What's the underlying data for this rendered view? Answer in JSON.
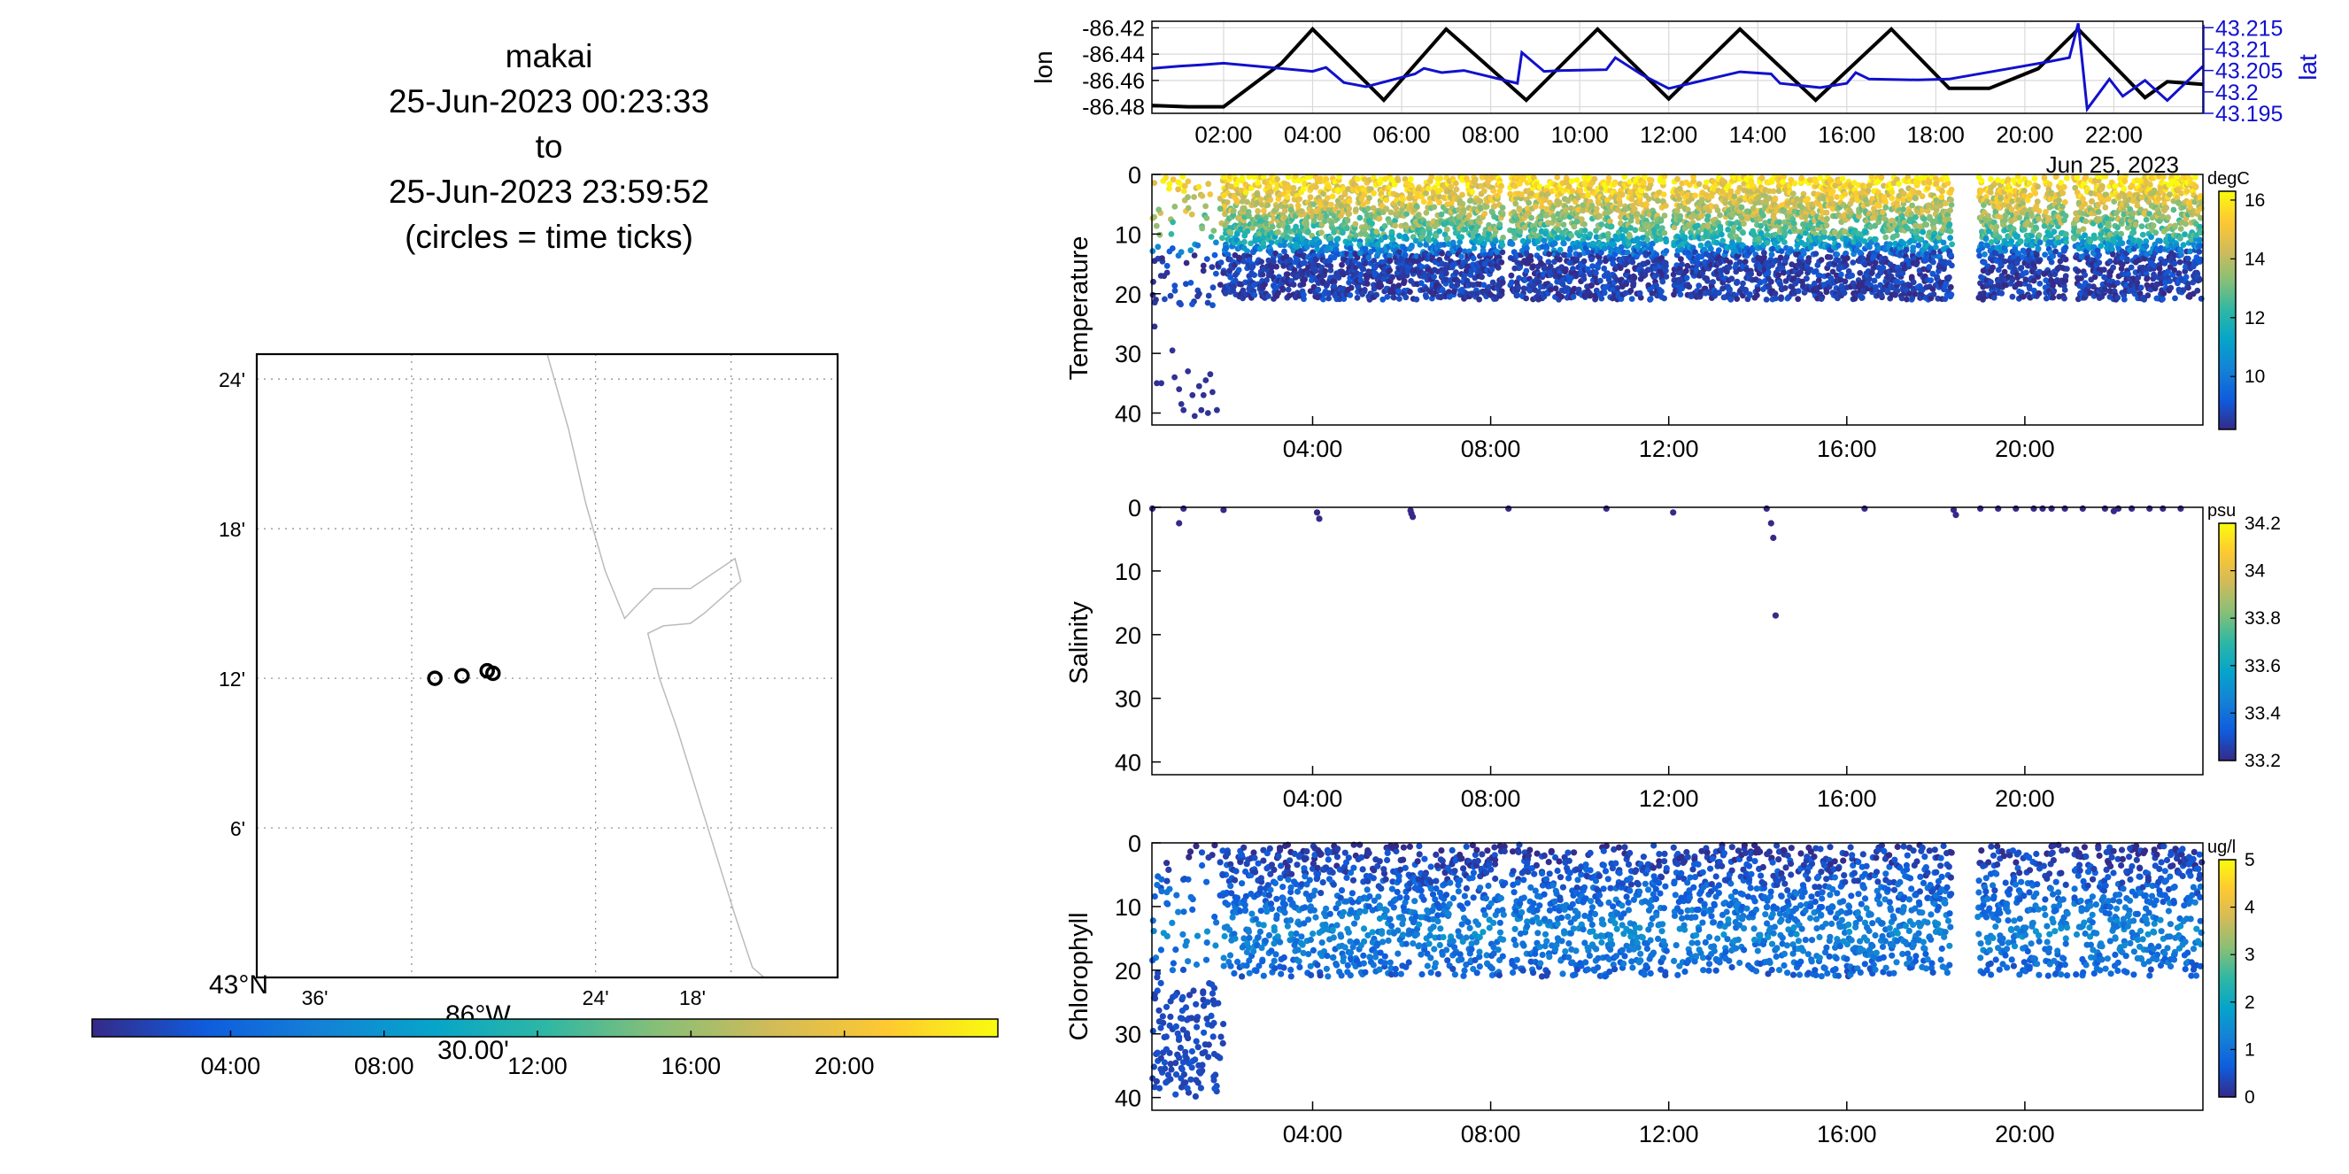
{
  "title": {
    "lines": [
      "makai",
      "25-Jun-2023 00:23:33",
      "to",
      "25-Jun-2023 23:59:52",
      "(circles = time ticks)"
    ]
  },
  "colors": {
    "lon_line": "#000000",
    "lat_line": "#1111cc",
    "grid": "#d9d9d9",
    "coast": "#bbbbbb",
    "parula_stops": [
      "#352a87",
      "#0f5cdd",
      "#1481d6",
      "#06a4ca",
      "#2eb7a4",
      "#87bf77",
      "#d1bb59",
      "#fec832",
      "#f9fb0e"
    ]
  },
  "chart_data": [
    {
      "name": "map",
      "type": "scatter",
      "y_tick_labels": [
        "24'",
        "18'",
        "12'",
        "6'"
      ],
      "x_tick_labels": [
        "36'",
        "24'",
        "18'"
      ],
      "corner_lat_label": "43°N",
      "corner_lon_label": "86°W",
      "corner_lon_sub": "30.00'",
      "xlim_min_west": [
        0,
        30
      ],
      "ylim_min_north": [
        0,
        25
      ],
      "circles_min": [
        {
          "lon_w": 20.8,
          "lat_n": 12.0
        },
        {
          "lon_w": 19.4,
          "lat_n": 12.1
        },
        {
          "lon_w": 18.1,
          "lat_n": 12.3
        },
        {
          "lon_w": 17.8,
          "lat_n": 12.2
        }
      ],
      "coast_min": [
        [
          15.0,
          25.0
        ],
        [
          13.9,
          22.0
        ],
        [
          13.0,
          19.0
        ],
        [
          12.0,
          16.3
        ],
        [
          11.0,
          14.4
        ],
        [
          10.4,
          14.9
        ],
        [
          9.5,
          15.6
        ],
        [
          7.6,
          15.6
        ],
        [
          5.3,
          16.8
        ],
        [
          5.0,
          15.9
        ],
        [
          6.9,
          14.6
        ],
        [
          7.6,
          14.2
        ],
        [
          9.0,
          14.1
        ],
        [
          9.8,
          13.8
        ],
        [
          9.2,
          12.0
        ],
        [
          8.3,
          10.0
        ],
        [
          7.3,
          7.5
        ],
        [
          6.3,
          5.0
        ],
        [
          5.3,
          2.5
        ],
        [
          4.4,
          0.4
        ],
        [
          3.8,
          0.0
        ]
      ],
      "grid_lon_min": [
        22.0,
        12.5,
        5.5
      ],
      "grid_lat_min": [
        24.0,
        18.0,
        12.0,
        6.0
      ]
    },
    {
      "name": "time-colorbar",
      "type": "heatmap",
      "tick_labels": [
        "04:00",
        "08:00",
        "12:00",
        "16:00",
        "20:00"
      ],
      "tick_hours": [
        4,
        8,
        12,
        16,
        20
      ],
      "range_hours": [
        0.39,
        24.0
      ]
    },
    {
      "name": "track",
      "type": "line",
      "ylabel_left": "lon",
      "ylabel_right": "lat",
      "left_tick_labels": [
        "-86.42",
        "-86.44",
        "-86.46",
        "-86.48"
      ],
      "left_ticks": [
        -86.42,
        -86.44,
        -86.46,
        -86.48
      ],
      "right_tick_labels": [
        "43.215",
        "43.21",
        "43.205",
        "43.2",
        "43.195"
      ],
      "right_ticks": [
        43.215,
        43.21,
        43.205,
        43.2,
        43.195
      ],
      "x_tick_labels": [
        "02:00",
        "04:00",
        "06:00",
        "08:00",
        "10:00",
        "12:00",
        "14:00",
        "16:00",
        "18:00",
        "20:00",
        "22:00"
      ],
      "x_ticks": [
        2,
        4,
        6,
        8,
        10,
        12,
        14,
        16,
        18,
        20,
        22
      ],
      "date_label": "Jun 25, 2023",
      "xlim": [
        0.39,
        24.0
      ],
      "ylim_lon": [
        -86.485,
        -86.415
      ],
      "ylim_lat": [
        43.195,
        43.2165
      ],
      "series": [
        {
          "name": "lon",
          "x": [
            0.39,
            1.2,
            2.0,
            3.3,
            4.0,
            5.6,
            7.0,
            8.8,
            10.4,
            12.0,
            13.6,
            15.3,
            17.0,
            18.3,
            19.2,
            20.3,
            21.2,
            22.7,
            23.2,
            24.0
          ],
          "y": [
            -86.479,
            -86.48,
            -86.48,
            -86.447,
            -86.421,
            -86.475,
            -86.421,
            -86.475,
            -86.421,
            -86.474,
            -86.421,
            -86.475,
            -86.421,
            -86.466,
            -86.466,
            -86.451,
            -86.421,
            -86.473,
            -86.461,
            -86.463
          ]
        },
        {
          "name": "lat",
          "x": [
            0.39,
            1.0,
            1.5,
            2.0,
            4.0,
            4.3,
            4.7,
            5.2,
            6.3,
            6.5,
            6.9,
            7.4,
            8.6,
            8.7,
            9.2,
            9.6,
            10.6,
            10.8,
            11.4,
            12.0,
            13.6,
            14.3,
            14.5,
            15.4,
            16.0,
            16.2,
            16.5,
            17.6,
            18.3,
            20.5,
            21.0,
            21.2,
            21.4,
            21.9,
            22.2,
            22.7,
            23.2,
            24.0
          ],
          "y": [
            43.2055,
            43.206,
            43.2063,
            43.2067,
            43.2048,
            43.2057,
            43.2022,
            43.2012,
            43.2042,
            43.2055,
            43.2045,
            43.205,
            43.202,
            43.2092,
            43.2048,
            43.205,
            43.2052,
            43.208,
            43.204,
            43.2008,
            43.2047,
            43.2042,
            43.202,
            43.201,
            43.202,
            43.2045,
            43.203,
            43.2028,
            43.203,
            43.207,
            43.208,
            43.216,
            43.196,
            43.203,
            43.199,
            43.2027,
            43.198,
            43.206
          ]
        }
      ]
    },
    {
      "name": "temperature",
      "type": "scatter",
      "ylabel": "Temperature",
      "y_tick_labels": [
        "0",
        "10",
        "20",
        "30",
        "40"
      ],
      "y_ticks": [
        0,
        10,
        20,
        30,
        40
      ],
      "x_tick_labels": [
        "04:00",
        "08:00",
        "12:00",
        "16:00",
        "20:00"
      ],
      "x_ticks": [
        4,
        8,
        12,
        16,
        20
      ],
      "xlim": [
        0.39,
        24.0
      ],
      "ylim": [
        0,
        42
      ],
      "colorbar": {
        "unit": "degC",
        "tick_labels": [
          "16",
          "14",
          "12",
          "10"
        ],
        "ticks": [
          16,
          14,
          12,
          10
        ],
        "range": [
          8.2,
          16.3
        ]
      },
      "profile_interval_hours": 0.03,
      "dive_depth_m": 21,
      "gaps_hours": [
        [
          8.3,
          8.45
        ],
        [
          11.95,
          12.1
        ],
        [
          18.35,
          18.95
        ],
        [
          20.35,
          20.45
        ],
        [
          20.95,
          21.1
        ]
      ],
      "temperature_profile": {
        "surface_degC": 16.0,
        "mid_depth_m": 10,
        "mid_degC": 12.5,
        "bottom_depth_m": 14,
        "bottom_degC": 8.6
      },
      "early_deep_points": [
        {
          "x": 0.5,
          "y": 35
        },
        {
          "x": 0.6,
          "y": 35
        },
        {
          "x": 0.85,
          "y": 29.5
        },
        {
          "x": 0.9,
          "y": 34
        },
        {
          "x": 1.0,
          "y": 36
        },
        {
          "x": 1.05,
          "y": 38.5
        },
        {
          "x": 1.1,
          "y": 39.5
        },
        {
          "x": 1.2,
          "y": 33
        },
        {
          "x": 1.3,
          "y": 37
        },
        {
          "x": 1.35,
          "y": 40.5
        },
        {
          "x": 1.45,
          "y": 35.5
        },
        {
          "x": 1.5,
          "y": 39.5
        },
        {
          "x": 1.55,
          "y": 37
        },
        {
          "x": 1.6,
          "y": 34.5
        },
        {
          "x": 1.65,
          "y": 40
        },
        {
          "x": 1.7,
          "y": 33.5
        },
        {
          "x": 1.75,
          "y": 36.5
        },
        {
          "x": 1.85,
          "y": 39.5
        },
        {
          "x": 0.45,
          "y": 25.5
        },
        {
          "x": 0.45,
          "y": 14.5
        },
        {
          "x": 0.42,
          "y": 18
        },
        {
          "x": 0.48,
          "y": 21
        }
      ]
    },
    {
      "name": "salinity",
      "type": "scatter",
      "ylabel": "Salinity",
      "y_tick_labels": [
        "0",
        "10",
        "20",
        "30",
        "40"
      ],
      "y_ticks": [
        0,
        10,
        20,
        30,
        40
      ],
      "x_tick_labels": [
        "04:00",
        "08:00",
        "12:00",
        "16:00",
        "20:00"
      ],
      "x_ticks": [
        4,
        8,
        12,
        16,
        20
      ],
      "xlim": [
        0.39,
        24.0
      ],
      "ylim": [
        0,
        42
      ],
      "colorbar": {
        "unit": "psu",
        "tick_labels": [
          "34.2",
          "34",
          "33.8",
          "33.6",
          "33.4",
          "33.2"
        ],
        "ticks": [
          34.2,
          34.0,
          33.8,
          33.6,
          33.4,
          33.2
        ],
        "range": [
          33.2,
          34.2
        ]
      },
      "points": [
        {
          "x": 0.4,
          "y": 0.2,
          "v": 33.2
        },
        {
          "x": 1.0,
          "y": 2.5,
          "v": 33.2
        },
        {
          "x": 1.1,
          "y": 0.2,
          "v": 33.2
        },
        {
          "x": 2.0,
          "y": 0.4,
          "v": 33.2
        },
        {
          "x": 4.1,
          "y": 0.8,
          "v": 33.2
        },
        {
          "x": 4.15,
          "y": 1.8,
          "v": 33.2
        },
        {
          "x": 6.2,
          "y": 0.5,
          "v": 33.2
        },
        {
          "x": 6.25,
          "y": 1.5,
          "v": 33.2
        },
        {
          "x": 6.22,
          "y": 1.0,
          "v": 33.2
        },
        {
          "x": 8.4,
          "y": 0.2,
          "v": 33.2
        },
        {
          "x": 10.6,
          "y": 0.2,
          "v": 33.2
        },
        {
          "x": 12.1,
          "y": 0.8,
          "v": 33.2
        },
        {
          "x": 14.2,
          "y": 0.2,
          "v": 33.2
        },
        {
          "x": 14.3,
          "y": 2.5,
          "v": 33.2
        },
        {
          "x": 14.35,
          "y": 4.8,
          "v": 33.2
        },
        {
          "x": 14.4,
          "y": 17.0,
          "v": 33.2
        },
        {
          "x": 16.4,
          "y": 0.2,
          "v": 33.2
        },
        {
          "x": 18.4,
          "y": 0.4,
          "v": 33.2
        },
        {
          "x": 18.45,
          "y": 1.2,
          "v": 33.2
        },
        {
          "x": 19.0,
          "y": 0.2,
          "v": 33.2
        },
        {
          "x": 19.4,
          "y": 0.2,
          "v": 33.2
        },
        {
          "x": 19.8,
          "y": 0.2,
          "v": 33.2
        },
        {
          "x": 20.2,
          "y": 0.2,
          "v": 33.2
        },
        {
          "x": 20.4,
          "y": 0.2,
          "v": 33.2
        },
        {
          "x": 20.6,
          "y": 0.2,
          "v": 33.2
        },
        {
          "x": 20.9,
          "y": 0.2,
          "v": 33.2
        },
        {
          "x": 21.3,
          "y": 0.2,
          "v": 33.2
        },
        {
          "x": 21.8,
          "y": 0.2,
          "v": 33.2
        },
        {
          "x": 22.0,
          "y": 0.6,
          "v": 33.2
        },
        {
          "x": 22.1,
          "y": 0.2,
          "v": 33.2
        },
        {
          "x": 22.4,
          "y": 0.2,
          "v": 33.2
        },
        {
          "x": 22.8,
          "y": 0.2,
          "v": 33.2
        },
        {
          "x": 23.1,
          "y": 0.2,
          "v": 33.2
        },
        {
          "x": 23.5,
          "y": 0.2,
          "v": 33.2
        }
      ]
    },
    {
      "name": "chlorophyll",
      "type": "scatter",
      "ylabel": "Chlorophyll",
      "y_tick_labels": [
        "0",
        "10",
        "20",
        "30",
        "40"
      ],
      "y_ticks": [
        0,
        10,
        20,
        30,
        40
      ],
      "x_tick_labels": [
        "04:00",
        "08:00",
        "12:00",
        "16:00",
        "20:00"
      ],
      "x_ticks": [
        4,
        8,
        12,
        16,
        20
      ],
      "xlim": [
        0.39,
        24.0
      ],
      "ylim": [
        0,
        42
      ],
      "colorbar": {
        "unit": "ug/l",
        "tick_labels": [
          "5",
          "4",
          "3",
          "2",
          "1",
          "0"
        ],
        "ticks": [
          5,
          4,
          3,
          2,
          1,
          0
        ],
        "range": [
          0,
          5
        ]
      },
      "profile_interval_hours": 0.045,
      "dive_depth_m": 21,
      "gaps_hours": [
        [
          8.3,
          8.45
        ],
        [
          11.95,
          12.1
        ],
        [
          18.35,
          18.95
        ],
        [
          20.35,
          20.45
        ],
        [
          20.95,
          21.1
        ]
      ],
      "chlorophyll_profile": {
        "surface_ugl": 0.1,
        "peak_depth_m": 14,
        "peak_ugl": 1.3,
        "bottom_ugl": 0.6
      },
      "early_deep_range": {
        "x": [
          0.4,
          2.0
        ],
        "y": [
          22,
          40
        ]
      }
    }
  ]
}
